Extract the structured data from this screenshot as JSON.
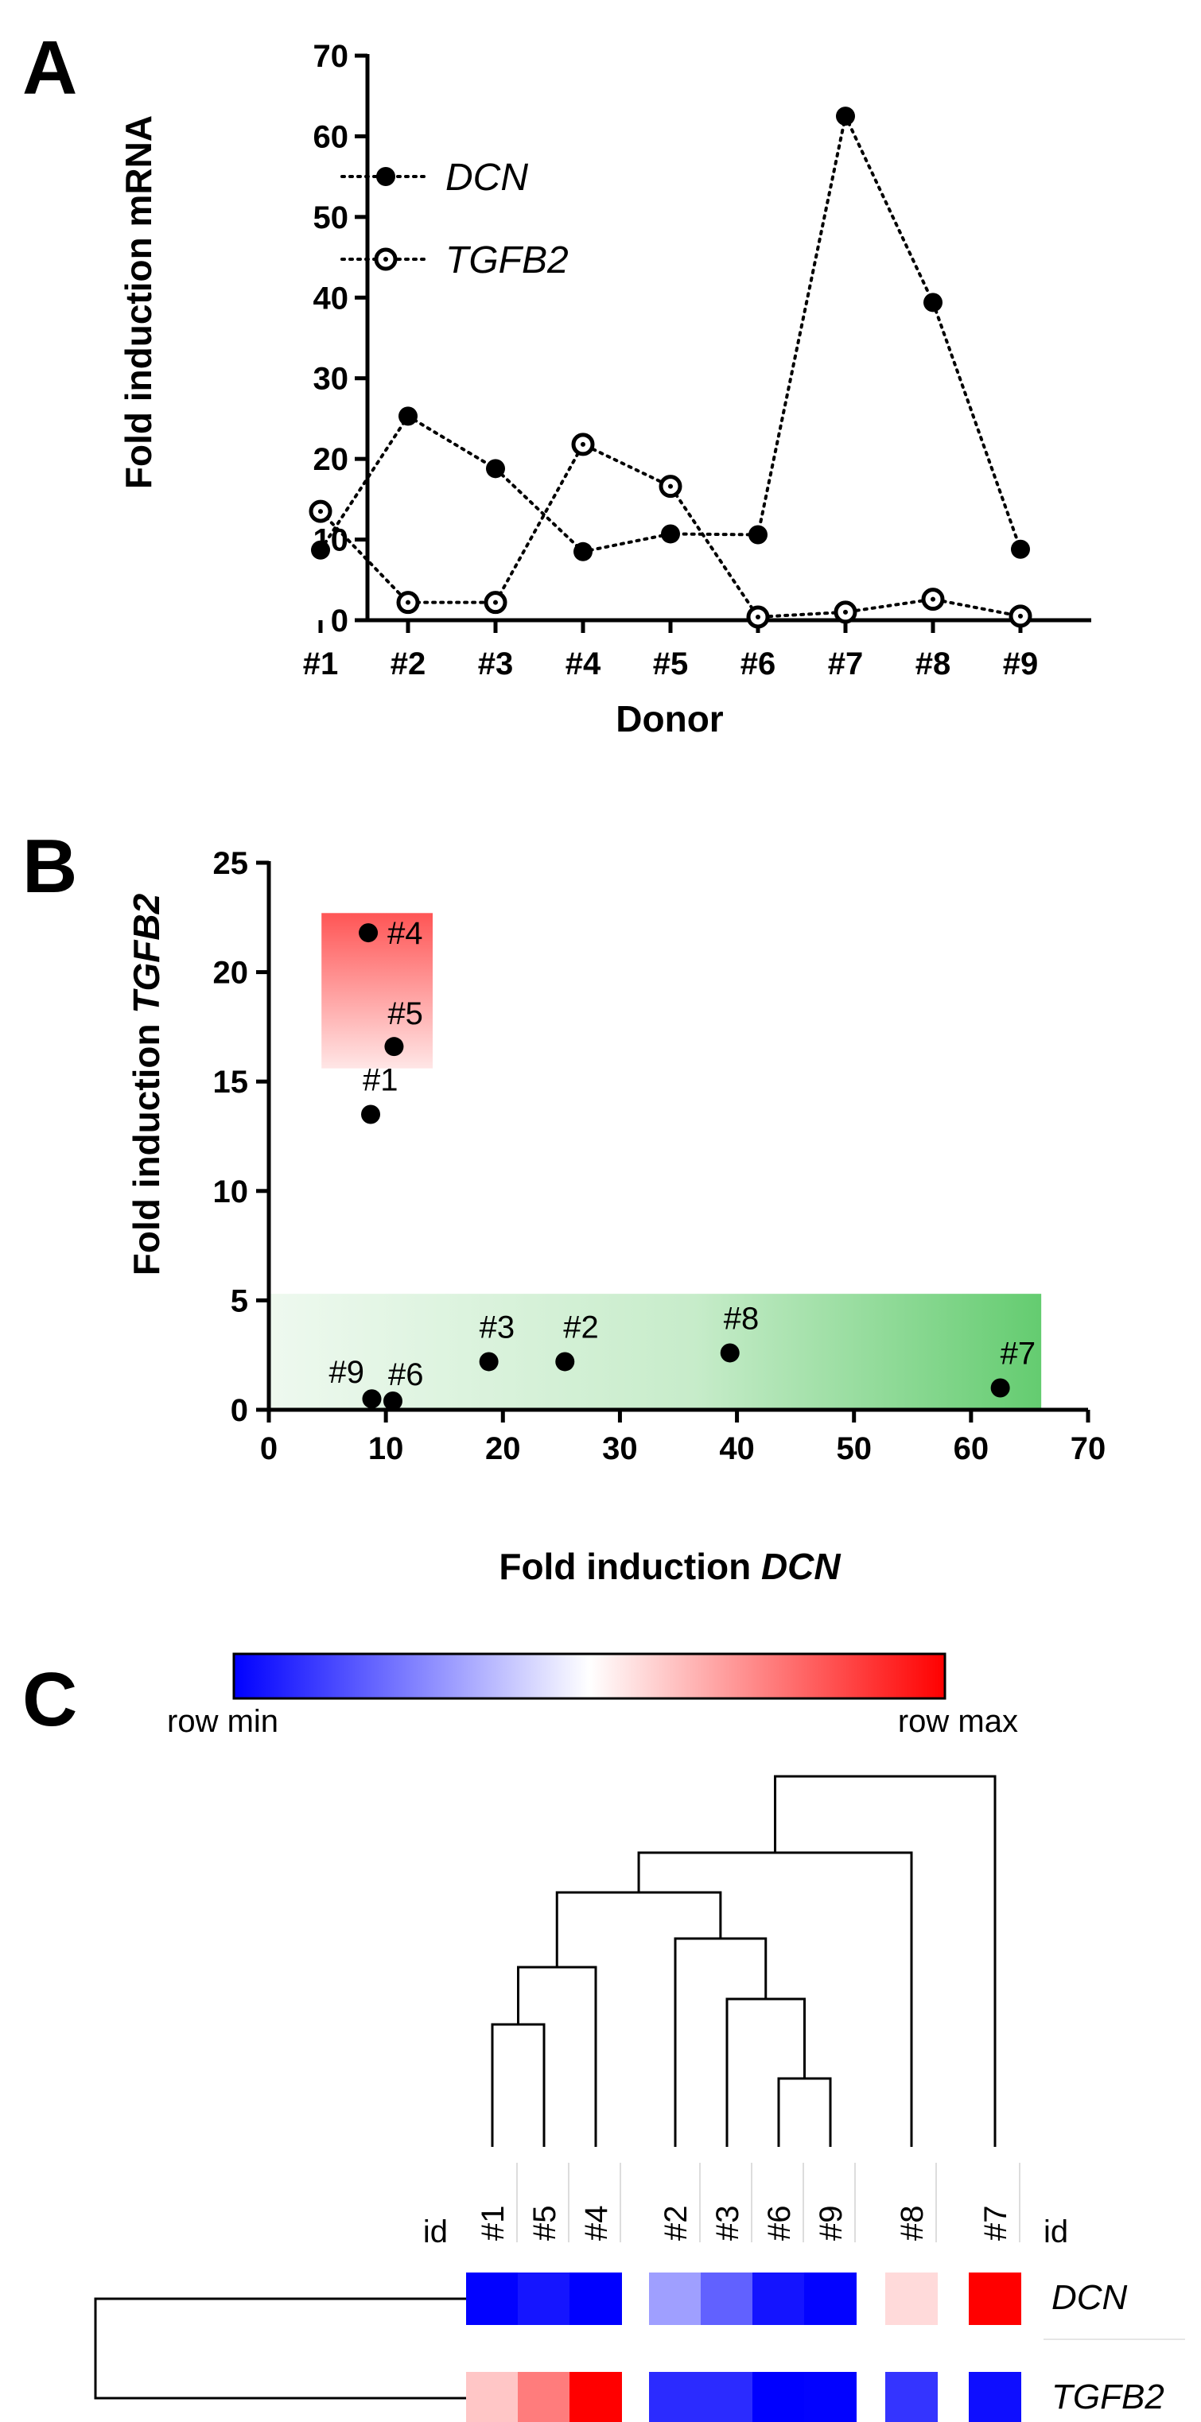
{
  "panels": {
    "a": "A",
    "b": "B",
    "c": "C"
  },
  "chart_data": [
    {
      "type": "line",
      "panel": "A",
      "xlabel": "Donor",
      "ylabel": "Fold induction mRNA",
      "categories": [
        "#1",
        "#2",
        "#3",
        "#4",
        "#5",
        "#6",
        "#7",
        "#8",
        "#9"
      ],
      "ylim": [
        0,
        70
      ],
      "yticks": [
        0,
        10,
        20,
        30,
        40,
        50,
        60,
        70
      ],
      "legend_position": "top-left",
      "series": [
        {
          "name": "DCN",
          "marker": "filled-circle",
          "values": [
            8.7,
            25.3,
            18.8,
            8.5,
            10.7,
            10.6,
            62.5,
            39.4,
            8.8
          ]
        },
        {
          "name": "TGFB2",
          "marker": "open-circle",
          "values": [
            13.5,
            2.2,
            2.2,
            21.8,
            16.6,
            0.4,
            1.0,
            2.6,
            0.5
          ]
        }
      ]
    },
    {
      "type": "scatter",
      "panel": "B",
      "xlabel_prefix": "Fold induction ",
      "xlabel_gene": "DCN",
      "ylabel_prefix": "Fold induction ",
      "ylabel_gene": "TGFB2",
      "xlim": [
        0,
        70
      ],
      "ylim": [
        0,
        25
      ],
      "xticks": [
        0,
        10,
        20,
        30,
        40,
        50,
        60,
        70
      ],
      "yticks": [
        0,
        5,
        10,
        15,
        20,
        25
      ],
      "points": [
        {
          "label": "#1",
          "x": 8.7,
          "y": 13.5
        },
        {
          "label": "#2",
          "x": 25.3,
          "y": 2.2
        },
        {
          "label": "#3",
          "x": 18.8,
          "y": 2.2
        },
        {
          "label": "#4",
          "x": 8.5,
          "y": 21.8
        },
        {
          "label": "#5",
          "x": 10.7,
          "y": 16.6
        },
        {
          "label": "#6",
          "x": 10.6,
          "y": 0.4
        },
        {
          "label": "#7",
          "x": 62.5,
          "y": 1.0
        },
        {
          "label": "#8",
          "x": 39.4,
          "y": 2.6
        },
        {
          "label": "#9",
          "x": 8.8,
          "y": 0.5
        }
      ],
      "highlight_regions": [
        {
          "color": "#ff5a5a",
          "x": [
            4.5,
            14.0
          ],
          "y": [
            15.6,
            22.7
          ]
        },
        {
          "color": "#5fcc6a",
          "x": [
            0,
            66.0
          ],
          "y": [
            0,
            5.3
          ]
        }
      ]
    },
    {
      "type": "heatmap",
      "panel": "C",
      "colorbar": {
        "min_label": "row min",
        "max_label": "row max",
        "min_color": "#0000ff",
        "mid_color": "#ffffff",
        "max_color": "#ff0000"
      },
      "id_label": "id",
      "columns": [
        "#1",
        "#5",
        "#4",
        "#2",
        "#3",
        "#6",
        "#9",
        "#8",
        "#7"
      ],
      "rows": [
        {
          "name": "DCN",
          "values": [
            8.7,
            10.7,
            8.5,
            25.3,
            18.8,
            10.6,
            8.8,
            39.4,
            62.5
          ]
        },
        {
          "name": "TGFB2",
          "values": [
            13.5,
            16.6,
            21.8,
            2.2,
            2.2,
            0.4,
            0.5,
            2.6,
            1.0
          ]
        }
      ],
      "row_dendrogram": true,
      "column_dendrogram": true
    }
  ]
}
